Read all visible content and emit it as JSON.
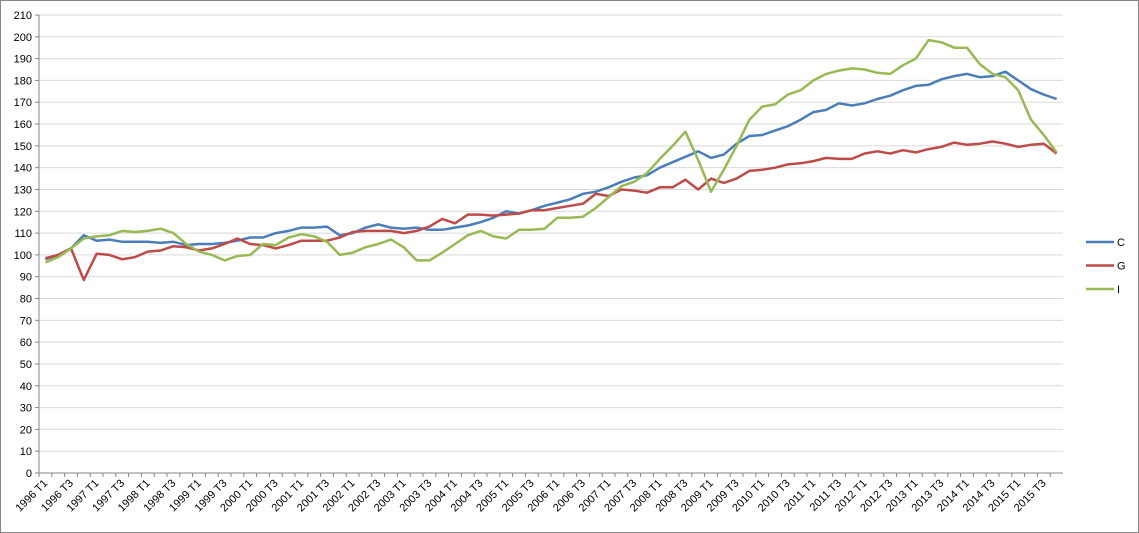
{
  "chart_data": {
    "type": "line",
    "categories": [
      "1996 T1",
      null,
      "1996 T3",
      null,
      "1997 T1",
      null,
      "1997 T3",
      null,
      "1998 T1",
      null,
      "1998 T3",
      null,
      "1999 T1",
      null,
      "1999 T3",
      null,
      "2000 T1",
      null,
      "2000 T3",
      null,
      "2001 T1",
      null,
      "2001 T3",
      null,
      "2002 T1",
      null,
      "2002 T3",
      null,
      "2003 T1",
      null,
      "2003 T3",
      null,
      "2004 T1",
      null,
      "2004 T3",
      null,
      "2005 T1",
      null,
      "2005 T3",
      null,
      "2006 T1",
      null,
      "2006 T3",
      null,
      "2007 T1",
      null,
      "2007 T3",
      null,
      "2008 T1",
      null,
      "2008 T3",
      null,
      "2009 T1",
      null,
      "2009 T3",
      null,
      "2010 T1",
      null,
      "2010 T3",
      null,
      "2011 T1",
      null,
      "2011 T3",
      null,
      "2012 T1",
      null,
      "2012 T3",
      null,
      "2013 T1",
      null,
      "2013 T3",
      null,
      "2014 T1",
      null,
      "2014 T3",
      null,
      "2015 T1",
      null,
      "2015 T3",
      null
    ],
    "series": [
      {
        "name": "C",
        "color": "#4a7ebb",
        "values": [
          98,
          100,
          103,
          109,
          106.5,
          107,
          106,
          106,
          106,
          105.5,
          106,
          104.5,
          105,
          105,
          105.5,
          106.5,
          108,
          108,
          110,
          111,
          112.5,
          112.5,
          113,
          109,
          110,
          112.5,
          114,
          112.5,
          112,
          112.5,
          111.5,
          111.5,
          112.5,
          113.5,
          115,
          117,
          120,
          119,
          120.5,
          122.5,
          124,
          125.5,
          128,
          129,
          131,
          133.5,
          135.5,
          136.5,
          140,
          142.5,
          145,
          147.5,
          144.5,
          146,
          151,
          154.5,
          155,
          157,
          159,
          162,
          165.5,
          166.5,
          169.5,
          168.5,
          169.5,
          171.5,
          173,
          175.5,
          177.5,
          178,
          180.5,
          182,
          183,
          181.5,
          182,
          184,
          180,
          176,
          173.5,
          171.5
        ]
      },
      {
        "name": "G",
        "color": "#be4b48",
        "values": [
          98.5,
          100,
          103,
          88.5,
          100.5,
          100,
          98,
          99,
          101.5,
          102,
          104,
          103.5,
          102,
          103,
          105,
          107.5,
          105,
          104.5,
          103,
          104.5,
          106.5,
          106.5,
          106.5,
          108,
          110.5,
          111,
          111,
          111,
          110,
          111,
          113,
          116.5,
          114.5,
          118.5,
          118.5,
          118,
          118.5,
          119,
          120.5,
          120.5,
          121.5,
          122.5,
          123.5,
          128,
          127,
          130,
          129.5,
          128.5,
          131,
          131,
          134.5,
          130,
          135,
          133,
          135,
          138.5,
          139,
          140,
          141.5,
          142,
          143,
          144.5,
          144,
          144,
          146.5,
          147.5,
          146.5,
          148,
          147,
          148.5,
          149.5,
          151.5,
          150.5,
          151,
          152,
          151,
          149.5,
          150.5,
          151,
          146.5
        ]
      },
      {
        "name": "I",
        "color": "#98b954",
        "values": [
          96.5,
          99,
          103,
          107.5,
          108.5,
          109,
          111,
          110.5,
          111,
          112,
          110,
          105,
          101.5,
          100,
          97.5,
          99.5,
          100,
          105,
          104.5,
          108,
          109.5,
          108.5,
          106,
          100,
          101,
          103.5,
          105,
          107,
          103.5,
          97.5,
          97.5,
          101,
          105,
          109,
          111,
          108.5,
          107.5,
          111.5,
          111.5,
          112,
          117,
          117,
          117.5,
          121.5,
          126.5,
          131.5,
          133.5,
          137.5,
          144,
          150,
          156.5,
          143.5,
          129,
          139,
          150,
          162,
          168,
          169,
          173.5,
          175.5,
          180,
          183,
          184.5,
          185.5,
          185,
          183.5,
          183,
          187,
          190,
          198.5,
          197.5,
          195,
          195,
          187.5,
          183,
          181.5,
          175.5,
          162,
          155,
          147
        ]
      }
    ],
    "ylim": [
      0,
      210
    ],
    "yticks": [
      0,
      10,
      20,
      30,
      40,
      50,
      60,
      70,
      80,
      90,
      100,
      110,
      120,
      130,
      140,
      150,
      160,
      170,
      180,
      190,
      200,
      210
    ],
    "grid": true,
    "legend": "right"
  }
}
